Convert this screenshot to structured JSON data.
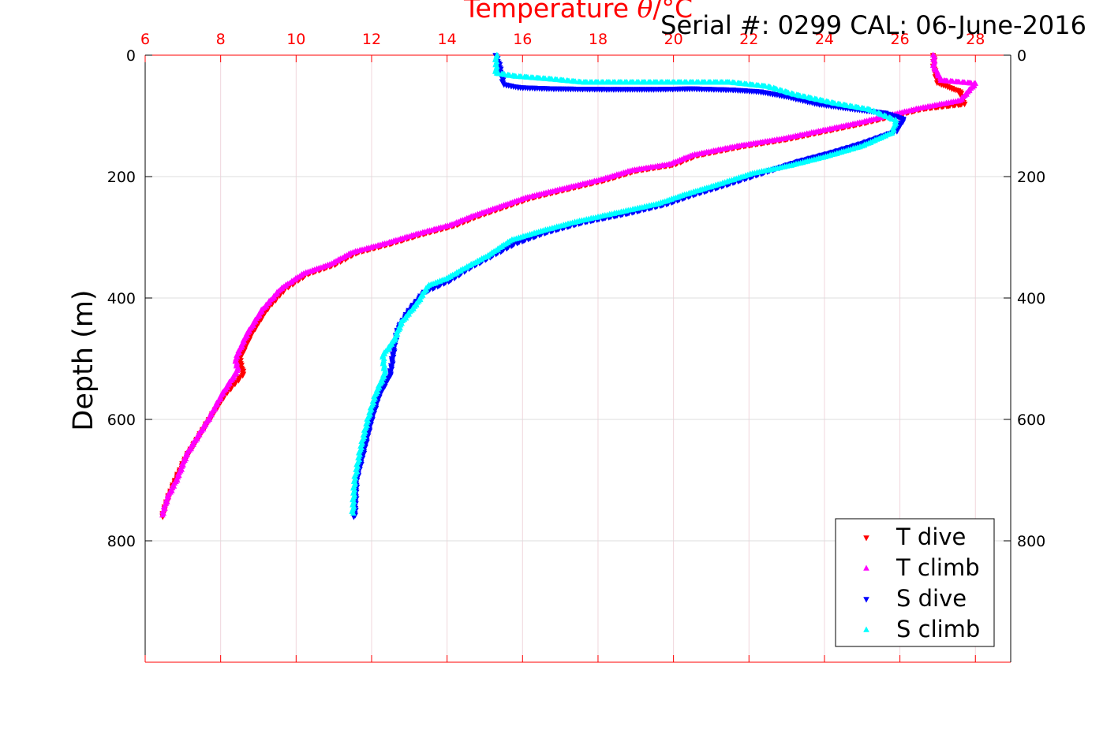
{
  "chart_data": {
    "type": "scatter",
    "title": "Serial #: 0299 CAL: 06-June-2016",
    "xlabel_main": "Temperature ",
    "xlabel_symbol": "θ",
    "xlabel_unit": "/°C",
    "ylabel": "Depth (m)",
    "xlim": [
      6,
      29
    ],
    "ylim": [
      1000,
      0
    ],
    "x_ticks": [
      "6",
      "8",
      "10",
      "12",
      "14",
      "16",
      "18",
      "20",
      "22",
      "24",
      "26",
      "28"
    ],
    "x_tick_values": [
      6,
      8,
      10,
      12,
      14,
      16,
      18,
      20,
      22,
      24,
      26,
      28
    ],
    "y_ticks": [
      "0",
      "200",
      "400",
      "600",
      "800"
    ],
    "y_tick_values": [
      0,
      200,
      400,
      600,
      800
    ],
    "grid": true,
    "legend_position": "bottom-right",
    "series": [
      {
        "name": "T dive",
        "color": "#ff0000",
        "marker": "triangle-down",
        "points": [
          [
            26.9,
            0
          ],
          [
            26.9,
            20
          ],
          [
            27.0,
            45
          ],
          [
            27.6,
            60
          ],
          [
            27.7,
            80
          ],
          [
            26.6,
            88
          ],
          [
            25.8,
            100
          ],
          [
            25.0,
            112
          ],
          [
            24.0,
            125
          ],
          [
            23.0,
            138
          ],
          [
            21.8,
            150
          ],
          [
            20.6,
            165
          ],
          [
            20.0,
            180
          ],
          [
            19.0,
            190
          ],
          [
            18.2,
            205
          ],
          [
            17.2,
            220
          ],
          [
            16.2,
            235
          ],
          [
            15.5,
            250
          ],
          [
            14.8,
            265
          ],
          [
            14.2,
            280
          ],
          [
            13.3,
            295
          ],
          [
            12.5,
            310
          ],
          [
            11.6,
            325
          ],
          [
            11.0,
            345
          ],
          [
            10.3,
            360
          ],
          [
            9.7,
            385
          ],
          [
            9.2,
            420
          ],
          [
            8.8,
            460
          ],
          [
            8.5,
            500
          ],
          [
            8.6,
            525
          ],
          [
            8.1,
            560
          ],
          [
            7.7,
            600
          ],
          [
            7.4,
            630
          ],
          [
            7.1,
            660
          ],
          [
            6.8,
            700
          ],
          [
            6.6,
            730
          ],
          [
            6.45,
            760
          ]
        ]
      },
      {
        "name": "T climb",
        "color": "#ff00ff",
        "marker": "triangle-up",
        "points": [
          [
            6.45,
            758
          ],
          [
            6.6,
            728
          ],
          [
            6.85,
            698
          ],
          [
            7.1,
            658
          ],
          [
            7.4,
            628
          ],
          [
            7.7,
            598
          ],
          [
            8.05,
            558
          ],
          [
            8.45,
            520
          ],
          [
            8.4,
            500
          ],
          [
            8.7,
            460
          ],
          [
            9.1,
            420
          ],
          [
            9.6,
            385
          ],
          [
            10.2,
            360
          ],
          [
            10.9,
            345
          ],
          [
            11.5,
            325
          ],
          [
            12.4,
            310
          ],
          [
            13.2,
            295
          ],
          [
            14.1,
            280
          ],
          [
            14.7,
            265
          ],
          [
            15.4,
            250
          ],
          [
            16.1,
            235
          ],
          [
            17.1,
            220
          ],
          [
            18.1,
            205
          ],
          [
            18.9,
            190
          ],
          [
            19.9,
            180
          ],
          [
            20.5,
            165
          ],
          [
            21.7,
            150
          ],
          [
            22.9,
            138
          ],
          [
            23.9,
            125
          ],
          [
            24.9,
            112
          ],
          [
            25.7,
            100
          ],
          [
            26.5,
            88
          ],
          [
            27.6,
            75
          ],
          [
            28.0,
            47
          ],
          [
            27.1,
            42
          ],
          [
            26.9,
            20
          ],
          [
            26.9,
            0
          ]
        ]
      },
      {
        "name": "S dive",
        "color": "#0000ff",
        "marker": "triangle-down",
        "points": [
          [
            15.3,
            0
          ],
          [
            15.4,
            20
          ],
          [
            15.5,
            48
          ],
          [
            15.9,
            53
          ],
          [
            16.8,
            55
          ],
          [
            18.3,
            56
          ],
          [
            19.5,
            56
          ],
          [
            20.5,
            55
          ],
          [
            21.6,
            57
          ],
          [
            22.3,
            60
          ],
          [
            23.0,
            68
          ],
          [
            23.8,
            80
          ],
          [
            24.7,
            88
          ],
          [
            25.6,
            95
          ],
          [
            26.1,
            105
          ],
          [
            25.9,
            125
          ],
          [
            25.0,
            145
          ],
          [
            24.2,
            160
          ],
          [
            23.3,
            175
          ],
          [
            22.3,
            195
          ],
          [
            21.3,
            215
          ],
          [
            20.5,
            230
          ],
          [
            19.8,
            245
          ],
          [
            18.8,
            260
          ],
          [
            17.6,
            275
          ],
          [
            16.6,
            292
          ],
          [
            15.8,
            310
          ],
          [
            15.2,
            330
          ],
          [
            14.6,
            350
          ],
          [
            14.1,
            370
          ],
          [
            13.4,
            390
          ],
          [
            13.0,
            420
          ],
          [
            12.7,
            450
          ],
          [
            12.6,
            480
          ],
          [
            12.5,
            525
          ],
          [
            12.2,
            560
          ],
          [
            12.0,
            600
          ],
          [
            11.8,
            650
          ],
          [
            11.6,
            700
          ],
          [
            11.55,
            760
          ]
        ]
      },
      {
        "name": "S climb",
        "color": "#00ffff",
        "marker": "triangle-up",
        "points": [
          [
            11.5,
            755
          ],
          [
            11.55,
            700
          ],
          [
            11.7,
            650
          ],
          [
            11.9,
            600
          ],
          [
            12.1,
            560
          ],
          [
            12.35,
            525
          ],
          [
            12.3,
            495
          ],
          [
            12.6,
            470
          ],
          [
            12.8,
            440
          ],
          [
            13.2,
            410
          ],
          [
            13.5,
            380
          ],
          [
            14.0,
            368
          ],
          [
            14.5,
            350
          ],
          [
            15.1,
            330
          ],
          [
            15.7,
            305
          ],
          [
            16.5,
            290
          ],
          [
            17.4,
            275
          ],
          [
            18.5,
            260
          ],
          [
            19.6,
            245
          ],
          [
            20.3,
            230
          ],
          [
            21.1,
            215
          ],
          [
            22.1,
            195
          ],
          [
            23.1,
            182
          ],
          [
            24.0,
            168
          ],
          [
            25.0,
            150
          ],
          [
            25.8,
            128
          ],
          [
            25.9,
            108
          ],
          [
            25.2,
            90
          ],
          [
            24.3,
            80
          ],
          [
            23.2,
            65
          ],
          [
            22.5,
            52
          ],
          [
            21.5,
            45
          ],
          [
            20.5,
            45
          ],
          [
            19.5,
            45
          ],
          [
            18.2,
            45
          ],
          [
            17.6,
            45
          ],
          [
            16.8,
            40
          ],
          [
            15.8,
            35
          ],
          [
            15.3,
            30
          ],
          [
            15.3,
            0
          ]
        ]
      }
    ]
  }
}
